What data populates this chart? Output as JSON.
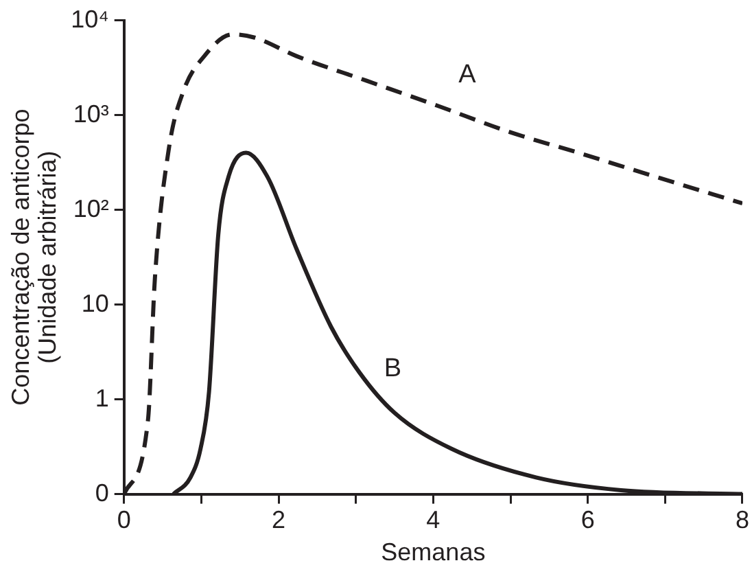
{
  "chart_data": {
    "type": "line",
    "xlabel": "Semanas",
    "ylabel": "Concentração de anticorpo\n(Unidade arbitrária)",
    "log": "y",
    "grid": false,
    "legend": false,
    "marker": "none",
    "xlim": [
      0,
      8
    ],
    "xticks": [
      0,
      {
        "value": 1,
        "label": null
      },
      2,
      {
        "value": 3,
        "label": null
      },
      4,
      {
        "value": 5,
        "label": null
      },
      6,
      {
        "value": 7,
        "label": null
      },
      8
    ],
    "ylim": [
      0.1,
      10000
    ],
    "yticks": [
      {
        "value": 0.1,
        "label": "0"
      },
      1,
      10,
      {
        "value": 100,
        "label": "10²"
      },
      {
        "value": 1000,
        "label": "10³"
      },
      {
        "value": 10000,
        "label": "10⁴"
      }
    ],
    "series": [
      {
        "name": "A",
        "color": "#231f20",
        "line_style": "dashed",
        "x": [
          0,
          0.31,
          0.4,
          0.58,
          0.77,
          1.04,
          1.4,
          1.68,
          2.23,
          3.14,
          4.05,
          4.97,
          5.88,
          6.79,
          8
        ],
        "values": [
          0.1,
          0.6,
          19,
          440,
          1800,
          4200,
          7100,
          6600,
          4200,
          2300,
          1260,
          670,
          400,
          235,
          117
        ]
      },
      {
        "name": "B",
        "color": "#231f20",
        "line_style": "solid",
        "x": [
          0.64,
          0.86,
          0.99,
          1.1,
          1.22,
          1.35,
          1.58,
          1.86,
          2.23,
          2.68,
          3.05,
          3.5,
          4.24,
          5.33,
          6.43,
          8
        ],
        "values": [
          0.1,
          0.15,
          0.3,
          1.2,
          55,
          220,
          400,
          220,
          39,
          5.8,
          1.9,
          0.72,
          0.3,
          0.15,
          0.11,
          0.1
        ]
      }
    ]
  }
}
